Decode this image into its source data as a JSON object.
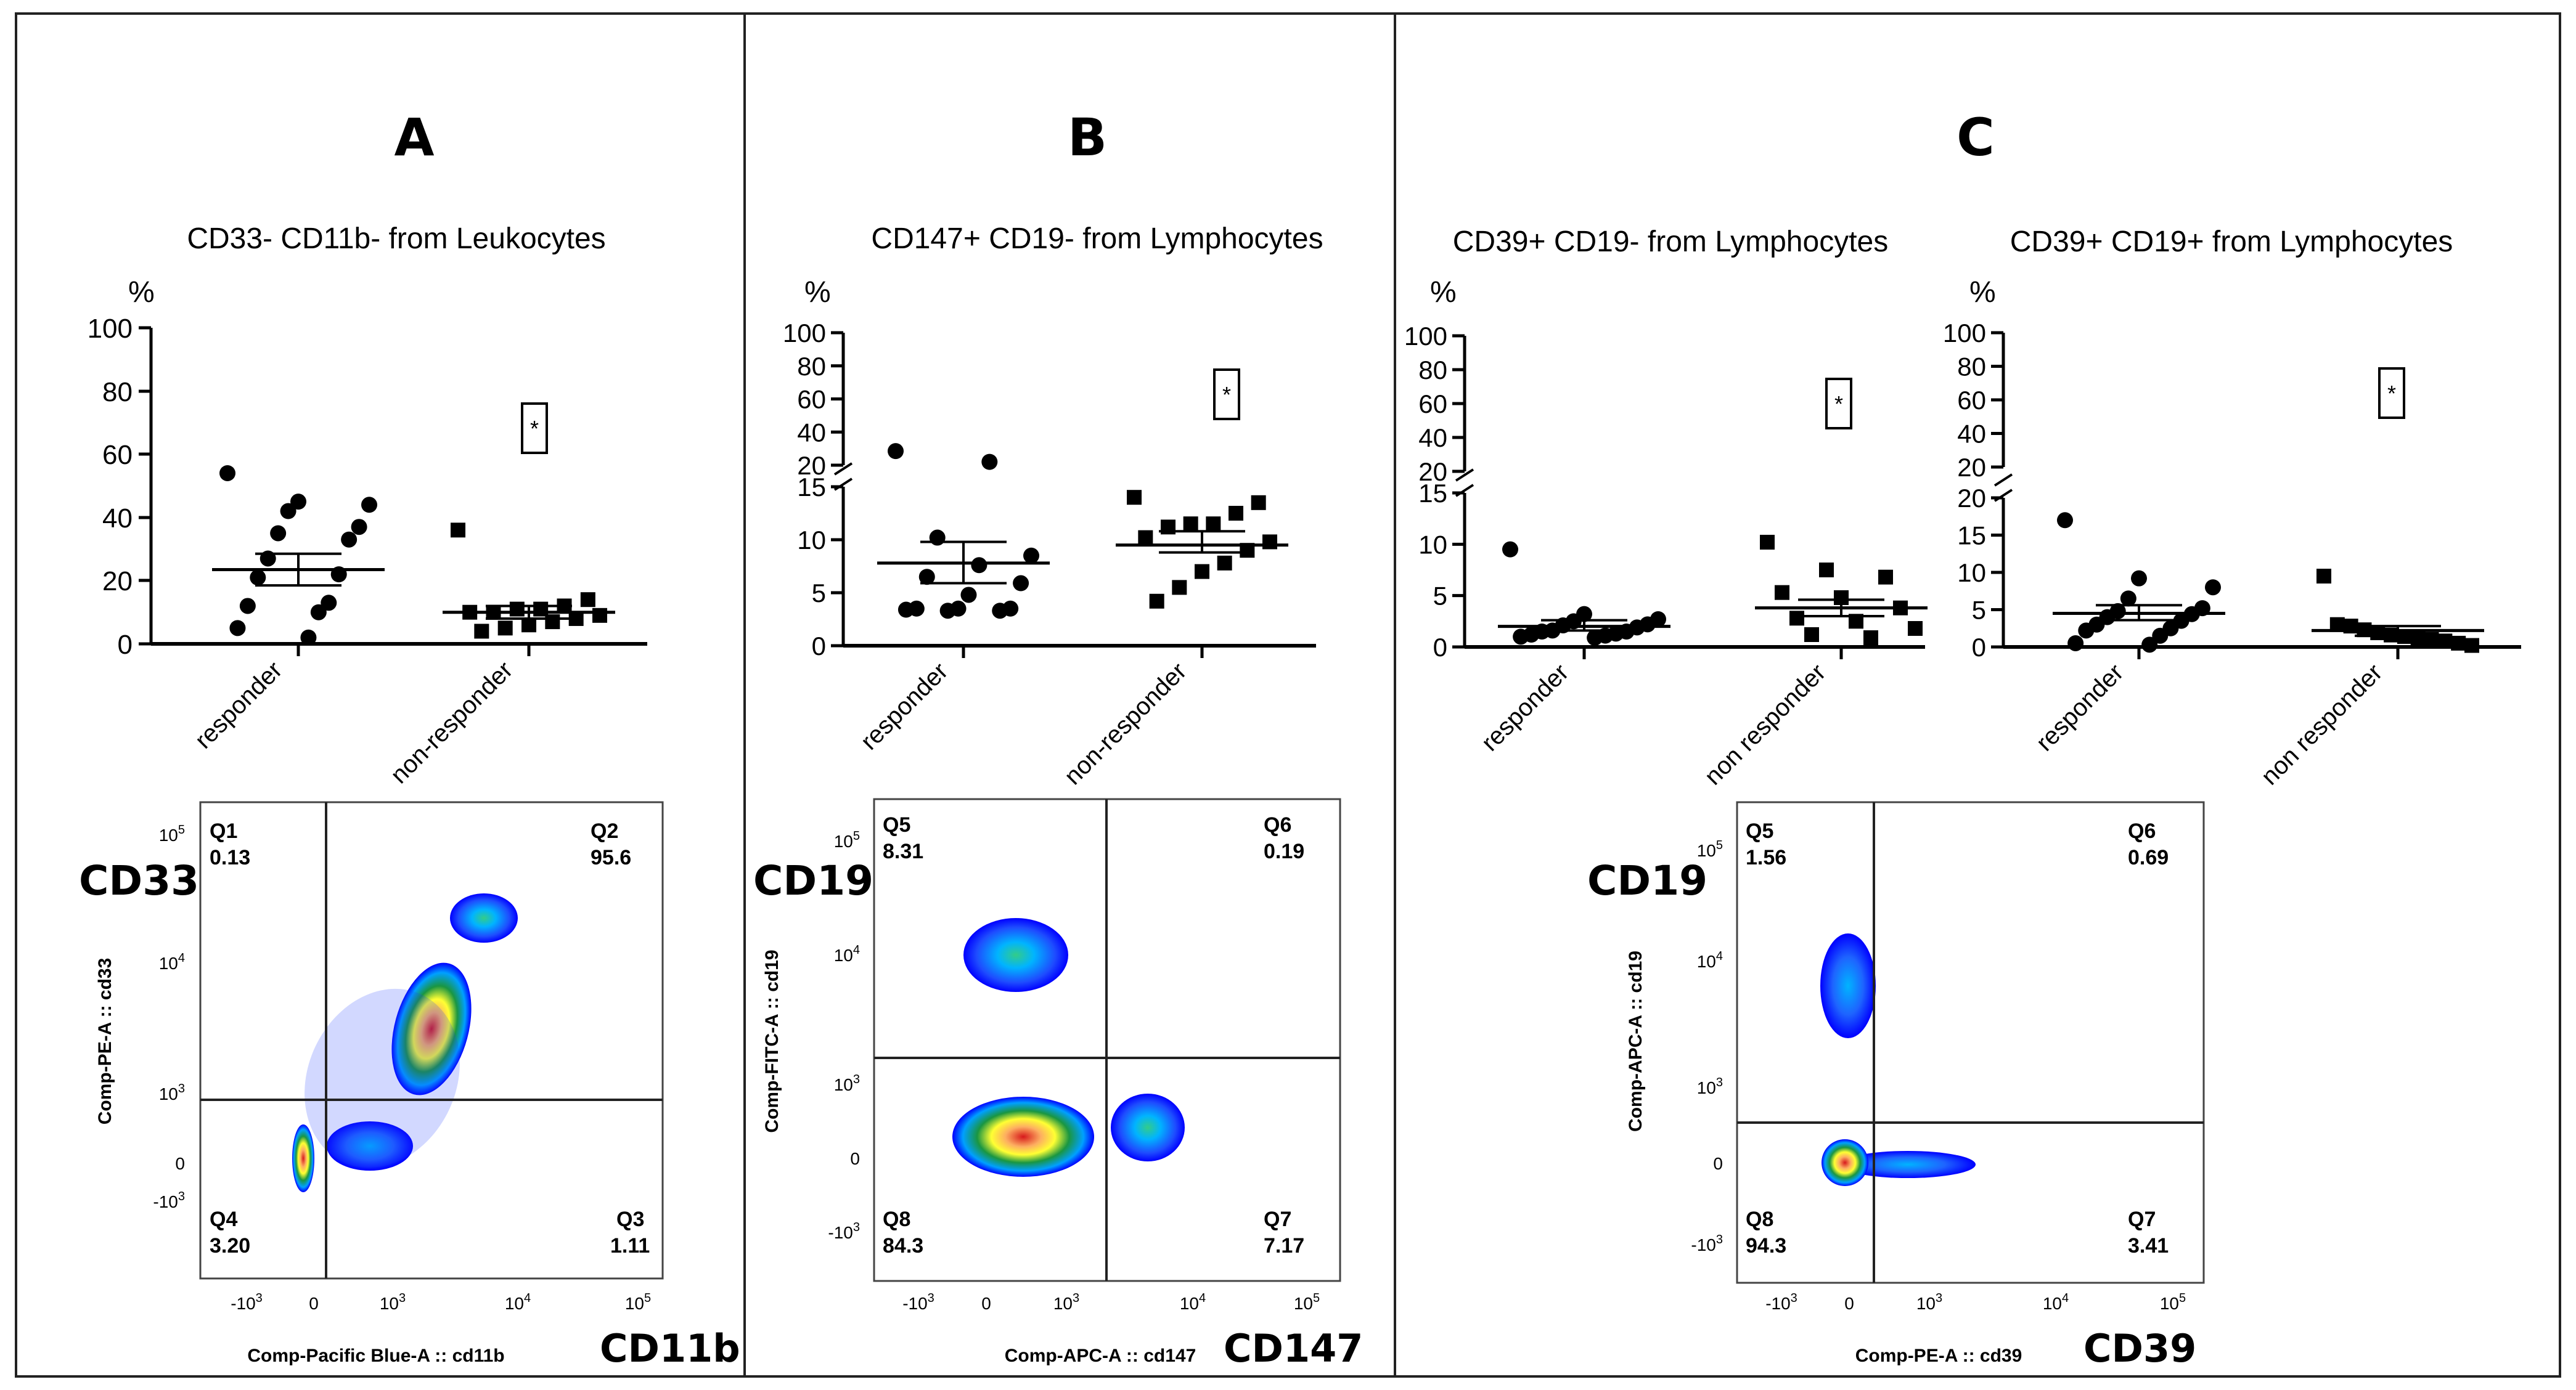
{
  "panels": [
    {
      "letter": "A"
    },
    {
      "letter": "B"
    },
    {
      "letter": "C"
    }
  ],
  "marker_labels": [
    "CD33",
    "CD11b",
    "CD19",
    "CD147",
    "CD19",
    "CD39"
  ],
  "chart_data": [
    {
      "type": "scatter",
      "panel": "A",
      "title": "CD33- CD11b- from Leukocytes",
      "ylabel": "%",
      "categories": [
        "responder",
        "non-responder"
      ],
      "ylim": [
        0,
        100
      ],
      "yticks": [
        "0",
        "20",
        "40",
        "60",
        "80",
        "100"
      ],
      "significance": "*",
      "series": [
        {
          "name": "responder",
          "marker": "circle",
          "mean": 23.5,
          "sem_low": 18.5,
          "sem_high": 28.5,
          "values": [
            54,
            45,
            44,
            42,
            37,
            35,
            33,
            27,
            22,
            21,
            13,
            12,
            10,
            5,
            2
          ]
        },
        {
          "name": "non-responder",
          "marker": "square",
          "mean": 10,
          "sem_low": 8,
          "sem_high": 12,
          "values": [
            36,
            14,
            12,
            11,
            11,
            10,
            10,
            9,
            8,
            7,
            6,
            5,
            4
          ]
        }
      ]
    },
    {
      "type": "scatter",
      "panel": "B",
      "title": "CD147+ CD19- from Lymphocytes",
      "ylabel": "%",
      "categories": [
        "responder",
        "non-responder"
      ],
      "ylim": [
        0,
        100
      ],
      "yticks_lower": [
        "0",
        "5",
        "10",
        "15"
      ],
      "yticks_upper": [
        "20",
        "40",
        "60",
        "80",
        "100"
      ],
      "significance": "*",
      "series": [
        {
          "name": "responder",
          "marker": "circle",
          "mean": 7.8,
          "sem_low": 5.9,
          "sem_high": 9.8,
          "values": [
            28.5,
            22,
            10.2,
            8.5,
            7.6,
            6.5,
            5.9,
            4.8,
            3.5,
            3.5,
            3.5,
            3.4,
            3.3,
            3.3
          ]
        },
        {
          "name": "non-responder",
          "marker": "square",
          "mean": 9.5,
          "sem_low": 8.8,
          "sem_high": 10.8,
          "values": [
            14,
            13.5,
            12.5,
            11.5,
            11.5,
            11.2,
            10.2,
            9.8,
            9,
            7.8,
            7,
            5.5,
            4.2
          ]
        }
      ]
    },
    {
      "type": "scatter",
      "panel": "C",
      "title": "CD39+ CD19- from Lymphocytes",
      "ylabel": "%",
      "categories": [
        "responder",
        "non responder"
      ],
      "ylim": [
        0,
        100
      ],
      "yticks_lower": [
        "0",
        "5",
        "10",
        "15"
      ],
      "yticks_upper": [
        "20",
        "40",
        "60",
        "80",
        "100"
      ],
      "significance": "*",
      "series": [
        {
          "name": "responder",
          "marker": "circle",
          "mean": 2.0,
          "sem_low": 1.6,
          "sem_high": 2.6,
          "values": [
            9.5,
            3.2,
            2.7,
            2.5,
            2.2,
            2.1,
            1.9,
            1.6,
            1.5,
            1.5,
            1.3,
            1.2,
            1.1,
            1.0,
            0.9
          ]
        },
        {
          "name": "non responder",
          "marker": "square",
          "mean": 3.8,
          "sem_low": 3.0,
          "sem_high": 4.6,
          "values": [
            10.2,
            7.5,
            6.8,
            5.3,
            4.8,
            3.8,
            2.8,
            2.5,
            1.8,
            1.2,
            0.9
          ]
        }
      ]
    },
    {
      "type": "scatter",
      "panel": "C",
      "title": "CD39+ CD19+ from Lymphocytes",
      "ylabel": "%",
      "categories": [
        "responder",
        "non responder"
      ],
      "ylim": [
        0,
        100
      ],
      "yticks_lower": [
        "0",
        "5",
        "10",
        "15",
        "20"
      ],
      "yticks_upper": [
        "20",
        "40",
        "60",
        "80",
        "100"
      ],
      "significance": "*",
      "series": [
        {
          "name": "responder",
          "marker": "circle",
          "mean": 4.5,
          "sem_low": 3.6,
          "sem_high": 5.6,
          "values": [
            17,
            9.2,
            8,
            6.5,
            5.2,
            4.8,
            4.4,
            4,
            3.5,
            3,
            2.5,
            2.2,
            1.5,
            0.5,
            0.3
          ]
        },
        {
          "name": "non responder",
          "marker": "square",
          "mean": 2.2,
          "sem_low": 1.5,
          "sem_high": 2.8,
          "values": [
            9.5,
            3,
            2.8,
            2.3,
            1.9,
            1.6,
            1.4,
            1.2,
            1.0,
            0.8,
            0.5,
            0.2
          ]
        }
      ]
    },
    {
      "type": "heatmap",
      "subtype": "flow-cytometry-density-plot",
      "panel": "A",
      "xlabel": "Comp-Pacific Blue-A :: cd11b",
      "ylabel": "Comp-PE-A :: cd33",
      "quadrants": [
        {
          "name": "Q1",
          "value": "0.13"
        },
        {
          "name": "Q2",
          "value": "95.6"
        },
        {
          "name": "Q3",
          "value": "1.11"
        },
        {
          "name": "Q4",
          "value": "3.20"
        }
      ],
      "xticks": [
        "-10^3",
        "0",
        "10^3",
        "10^4",
        "10^5"
      ],
      "yticks": [
        "-10^3",
        "0",
        "10^3",
        "10^4",
        "10^5"
      ]
    },
    {
      "type": "heatmap",
      "subtype": "flow-cytometry-density-plot",
      "panel": "B",
      "xlabel": "Comp-APC-A :: cd147",
      "ylabel": "Comp-FITC-A :: cd19",
      "quadrants": [
        {
          "name": "Q5",
          "value": "8.31"
        },
        {
          "name": "Q6",
          "value": "0.19"
        },
        {
          "name": "Q7",
          "value": "7.17"
        },
        {
          "name": "Q8",
          "value": "84.3"
        }
      ],
      "xticks": [
        "-10^3",
        "0",
        "10^3",
        "10^4",
        "10^5"
      ],
      "yticks": [
        "-10^3",
        "0",
        "10^3",
        "10^4",
        "10^5"
      ]
    },
    {
      "type": "heatmap",
      "subtype": "flow-cytometry-density-plot",
      "panel": "C",
      "xlabel": "Comp-PE-A :: cd39",
      "ylabel": "Comp-APC-A :: cd19",
      "quadrants": [
        {
          "name": "Q5",
          "value": "1.56"
        },
        {
          "name": "Q6",
          "value": "0.69"
        },
        {
          "name": "Q7",
          "value": "3.41"
        },
        {
          "name": "Q8",
          "value": "94.3"
        }
      ],
      "xticks": [
        "-10^3",
        "0",
        "10^3",
        "10^4",
        "10^5"
      ],
      "yticks": [
        "-10^3",
        "0",
        "10^3",
        "10^4",
        "10^5"
      ]
    }
  ]
}
